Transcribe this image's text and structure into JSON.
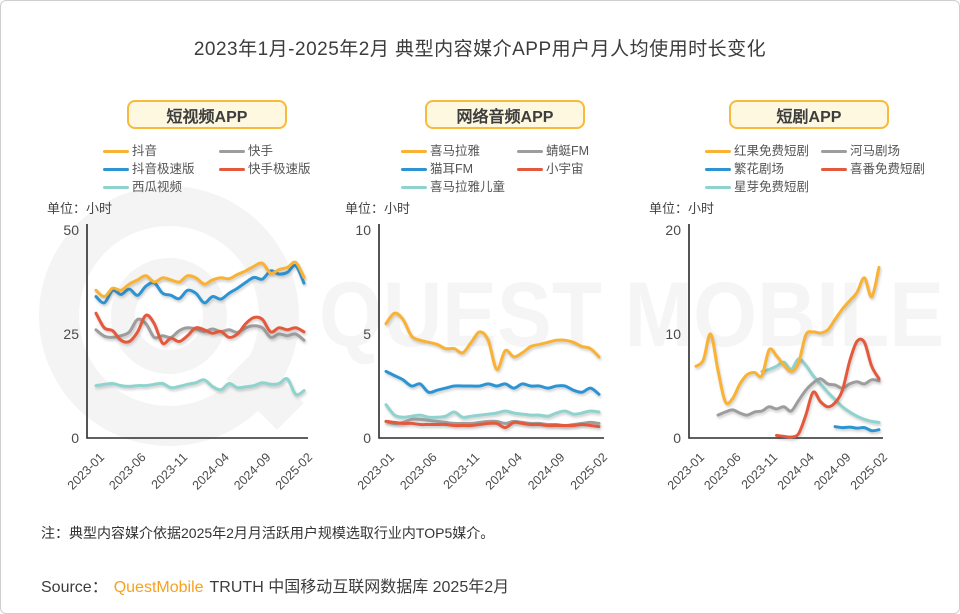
{
  "page": {
    "title": "2023年1月-2025年2月 典型内容媒介APP用户月人均使用时长变化"
  },
  "watermark": {
    "text": "QUEST MOBILE"
  },
  "note": "注：典型内容媒介依据2025年2月月活跃用户规模选取行业内TOP5媒介。",
  "source": {
    "label": "Source：",
    "brand": "QuestMobile",
    "rest": "TRUTH 中国移动互联网数据库 2025年2月"
  },
  "colors": {
    "brand_orange": "#F7A11E",
    "pill_border": "#F7BA3A",
    "pill_bg": "#FEF8E1",
    "axis": "#2b2b2b",
    "line_yellow": "#F9B233",
    "line_gray": "#9D9D9D",
    "line_blue": "#2D94D3",
    "line_red": "#E4593C",
    "line_teal": "#8FD3CE",
    "watermark": "#f4f4f4"
  },
  "chart_data": [
    {
      "type": "line",
      "panel_title": "短视频APP",
      "unit": "单位：小时",
      "x": [
        "2023-01",
        "2023-02",
        "2023-03",
        "2023-04",
        "2023-05",
        "2023-06",
        "2023-07",
        "2023-08",
        "2023-09",
        "2023-10",
        "2023-11",
        "2023-12",
        "2024-01",
        "2024-02",
        "2024-03",
        "2024-04",
        "2024-05",
        "2024-06",
        "2024-07",
        "2024-08",
        "2024-09",
        "2024-10",
        "2024-11",
        "2024-12",
        "2025-01",
        "2025-02"
      ],
      "x_ticks": [
        "2023-01",
        "2023-06",
        "2023-11",
        "2024-04",
        "2024-09",
        "2025-02"
      ],
      "ylim": [
        0,
        50
      ],
      "yticks": [
        0,
        25,
        50
      ],
      "grid": false,
      "legend_position": "top",
      "draw_order": [
        4,
        1,
        3,
        2,
        0
      ],
      "series": [
        {
          "name": "抖音",
          "color": "#F9B233",
          "values": [
            35.5,
            34,
            36,
            35.5,
            37,
            38,
            39,
            37.5,
            38.5,
            38,
            37.5,
            39,
            38.5,
            37,
            38,
            38.5,
            38.3,
            39.3,
            40.2,
            41.3,
            42,
            39.6,
            40.5,
            41,
            42.2,
            38.6
          ]
        },
        {
          "name": "快手",
          "color": "#9D9D9D",
          "values": [
            26,
            24.5,
            24.2,
            24.6,
            25.5,
            28.5,
            27.5,
            24.2,
            24.6,
            24.2,
            25.8,
            26.5,
            26.2,
            25.6,
            26.2,
            25.6,
            26,
            25.4,
            26.5,
            27,
            26.5,
            24.2,
            25,
            24.6,
            25,
            23.5
          ]
        },
        {
          "name": "抖音极速版",
          "color": "#2D94D3",
          "values": [
            34,
            32.5,
            35.5,
            34.5,
            35.8,
            34.3,
            36.5,
            37.3,
            34.8,
            34.3,
            33.5,
            35.5,
            34.8,
            32.5,
            34,
            33.4,
            34.8,
            36,
            37.4,
            38.6,
            38.2,
            40.2,
            39.4,
            39.8,
            41.4,
            37.2
          ]
        },
        {
          "name": "快手极速版",
          "color": "#E4593C",
          "values": [
            30,
            26.5,
            25.8,
            23.5,
            23.2,
            25.5,
            29.5,
            27.5,
            22.8,
            24,
            23.2,
            24.6,
            26.5,
            26,
            25.2,
            25.6,
            24.2,
            25,
            27.5,
            29,
            28.5,
            25.5,
            26.5,
            26,
            26.5,
            25.5
          ]
        },
        {
          "name": "西瓜视频",
          "color": "#8FD3CE",
          "values": [
            12.6,
            12.9,
            13.1,
            12.6,
            12.4,
            12.6,
            12.6,
            12.9,
            13.1,
            12.1,
            12.4,
            12.9,
            13.3,
            14,
            12.4,
            11.6,
            13.1,
            12.1,
            12.3,
            12.6,
            13.3,
            12.9,
            13.1,
            14.2,
            10.5,
            11.4
          ]
        }
      ]
    },
    {
      "type": "line",
      "panel_title": "网络音频APP",
      "unit": "单位：小时",
      "x": [
        "2023-01",
        "2023-02",
        "2023-03",
        "2023-04",
        "2023-05",
        "2023-06",
        "2023-07",
        "2023-08",
        "2023-09",
        "2023-10",
        "2023-11",
        "2023-12",
        "2024-01",
        "2024-02",
        "2024-03",
        "2024-04",
        "2024-05",
        "2024-06",
        "2024-07",
        "2024-08",
        "2024-09",
        "2024-10",
        "2024-11",
        "2024-12",
        "2025-01",
        "2025-02"
      ],
      "x_ticks": [
        "2023-01",
        "2023-06",
        "2023-11",
        "2024-04",
        "2024-09",
        "2025-02"
      ],
      "ylim": [
        0,
        10
      ],
      "yticks": [
        0,
        5,
        10
      ],
      "grid": false,
      "legend_position": "top",
      "draw_order": [
        4,
        1,
        3,
        2,
        0
      ],
      "series": [
        {
          "name": "喜马拉雅",
          "color": "#F9B233",
          "values": [
            5.5,
            6.0,
            5.7,
            4.9,
            4.7,
            4.6,
            4.5,
            4.3,
            4.3,
            4.1,
            4.6,
            5.1,
            4.7,
            3.3,
            4.2,
            3.9,
            4.1,
            4.4,
            4.5,
            4.6,
            4.7,
            4.7,
            4.6,
            4.4,
            4.3,
            3.9
          ]
        },
        {
          "name": "蜻蜓FM",
          "color": "#9D9D9D",
          "values": [
            0.8,
            0.7,
            0.75,
            0.9,
            0.9,
            0.85,
            0.8,
            0.75,
            0.7,
            0.7,
            0.7,
            0.75,
            0.8,
            0.8,
            0.7,
            0.8,
            0.75,
            0.7,
            0.7,
            0.65,
            0.65,
            0.6,
            0.65,
            0.7,
            0.75,
            0.7
          ]
        },
        {
          "name": "猫耳FM",
          "color": "#2D94D3",
          "values": [
            3.2,
            3.0,
            2.8,
            2.5,
            2.6,
            2.2,
            2.3,
            2.4,
            2.5,
            2.5,
            2.5,
            2.5,
            2.6,
            2.5,
            2.6,
            2.4,
            2.6,
            2.5,
            2.5,
            2.4,
            2.5,
            2.5,
            2.3,
            2.2,
            2.4,
            2.1
          ]
        },
        {
          "name": "小宇宙",
          "color": "#E4593C",
          "values": [
            0.8,
            0.75,
            0.7,
            0.7,
            0.65,
            0.65,
            0.65,
            0.65,
            0.6,
            0.6,
            0.6,
            0.65,
            0.7,
            0.7,
            0.5,
            0.75,
            0.7,
            0.65,
            0.65,
            0.6,
            0.6,
            0.6,
            0.6,
            0.65,
            0.6,
            0.55
          ]
        },
        {
          "name": "喜马拉雅儿童",
          "color": "#8FD3CE",
          "values": [
            1.6,
            1.1,
            1.0,
            1.05,
            1.1,
            1.0,
            1.0,
            1.05,
            1.25,
            1.0,
            1.05,
            1.1,
            1.15,
            1.2,
            1.3,
            1.2,
            1.15,
            1.1,
            1.1,
            1.05,
            1.2,
            1.3,
            1.15,
            1.2,
            1.3,
            1.25
          ]
        }
      ]
    },
    {
      "type": "line",
      "panel_title": "短剧APP",
      "unit": "单位：小时",
      "x": [
        "2023-01",
        "2023-02",
        "2023-03",
        "2023-04",
        "2023-05",
        "2023-06",
        "2023-07",
        "2023-08",
        "2023-09",
        "2023-10",
        "2023-11",
        "2023-12",
        "2024-01",
        "2024-02",
        "2024-03",
        "2024-04",
        "2024-05",
        "2024-06",
        "2024-07",
        "2024-08",
        "2024-09",
        "2024-10",
        "2024-11",
        "2024-12",
        "2025-01",
        "2025-02"
      ],
      "x_ticks": [
        "2023-01",
        "2023-06",
        "2023-11",
        "2024-04",
        "2024-09",
        "2025-02"
      ],
      "ylim": [
        0,
        20
      ],
      "yticks": [
        0,
        10,
        20
      ],
      "grid": false,
      "legend_position": "top",
      "draw_order": [
        4,
        1,
        3,
        2,
        0
      ],
      "series": [
        {
          "name": "红果免费短剧",
          "color": "#F9B233",
          "values": [
            6.9,
            7.5,
            10.0,
            6.5,
            3.5,
            3.8,
            5.2,
            6.1,
            6.3,
            6.0,
            8.5,
            7.9,
            7.0,
            6.4,
            7.2,
            9.9,
            10.2,
            10.1,
            10.4,
            11.4,
            12.4,
            13.2,
            14.0,
            15.4,
            13.6,
            16.4
          ]
        },
        {
          "name": "河马剧场",
          "color": "#9D9D9D",
          "values": [
            null,
            null,
            null,
            2.2,
            2.5,
            2.7,
            2.4,
            2.2,
            2.5,
            2.6,
            3.0,
            2.8,
            3.0,
            2.6,
            3.6,
            4.6,
            5.3,
            5.7,
            5.2,
            5.1,
            4.8,
            5.2,
            5.4,
            5.2,
            5.6,
            5.5
          ]
        },
        {
          "name": "繁花剧场",
          "color": "#2D94D3",
          "values": [
            null,
            null,
            null,
            null,
            null,
            null,
            null,
            null,
            null,
            null,
            null,
            null,
            null,
            null,
            null,
            null,
            null,
            null,
            null,
            1.1,
            1.0,
            1.05,
            0.95,
            1.0,
            0.7,
            0.8
          ]
        },
        {
          "name": "喜番免费短剧",
          "color": "#E4593C",
          "values": [
            null,
            null,
            null,
            null,
            null,
            null,
            null,
            null,
            null,
            null,
            null,
            0.25,
            0.15,
            0.1,
            0.4,
            2.2,
            4.4,
            3.5,
            3.0,
            3.4,
            4.6,
            7.4,
            9.3,
            9.2,
            6.9,
            5.7
          ]
        },
        {
          "name": "星芽免费短剧",
          "color": "#8FD3CE",
          "values": [
            null,
            null,
            null,
            null,
            null,
            null,
            null,
            null,
            null,
            6.4,
            6.6,
            6.9,
            7.3,
            6.6,
            7.6,
            7.0,
            6.0,
            5.2,
            4.4,
            3.7,
            3.0,
            2.5,
            2.1,
            1.8,
            1.6,
            1.5
          ]
        }
      ]
    }
  ]
}
